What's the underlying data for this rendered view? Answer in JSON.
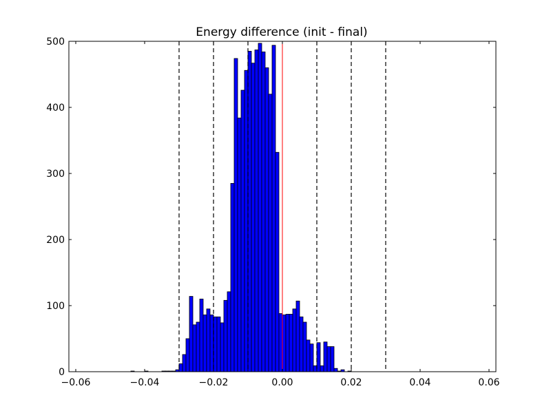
{
  "chart_data": {
    "type": "bar",
    "title": "Energy difference (init - final)",
    "xlabel": "",
    "ylabel": "",
    "xlim": [
      -0.062,
      0.062
    ],
    "ylim": [
      0,
      500
    ],
    "xticks": [
      -0.06,
      -0.04,
      -0.02,
      0.0,
      0.02,
      0.04,
      0.06
    ],
    "xtick_labels": [
      "−0.06",
      "−0.04",
      "−0.02",
      "0.00",
      "0.02",
      "0.04",
      "0.06"
    ],
    "yticks": [
      0,
      100,
      200,
      300,
      400,
      500
    ],
    "ytick_labels": [
      "0",
      "100",
      "200",
      "300",
      "400",
      "500"
    ],
    "bin_start": -0.044,
    "bin_width": 0.001,
    "counts": [
      1,
      0,
      0,
      0,
      1,
      0,
      0,
      0,
      0,
      1,
      1,
      1,
      1,
      3,
      12,
      26,
      50,
      114,
      71,
      75,
      110,
      86,
      95,
      86,
      83,
      83,
      74,
      108,
      121,
      285,
      474,
      384,
      426,
      456,
      485,
      467,
      487,
      497,
      484,
      460,
      420,
      494,
      332,
      88,
      86,
      87,
      87,
      95,
      107,
      83,
      75,
      48,
      42,
      9,
      44,
      9,
      45,
      38,
      38,
      5,
      1,
      3,
      0,
      1
    ],
    "bar_color": "#0000ff",
    "vlines_dashed": [
      -0.03,
      -0.02,
      -0.01,
      0.01,
      0.02,
      0.03
    ],
    "vline_center": 0.0,
    "vline_center_color": "#ff0000",
    "grid": false
  }
}
